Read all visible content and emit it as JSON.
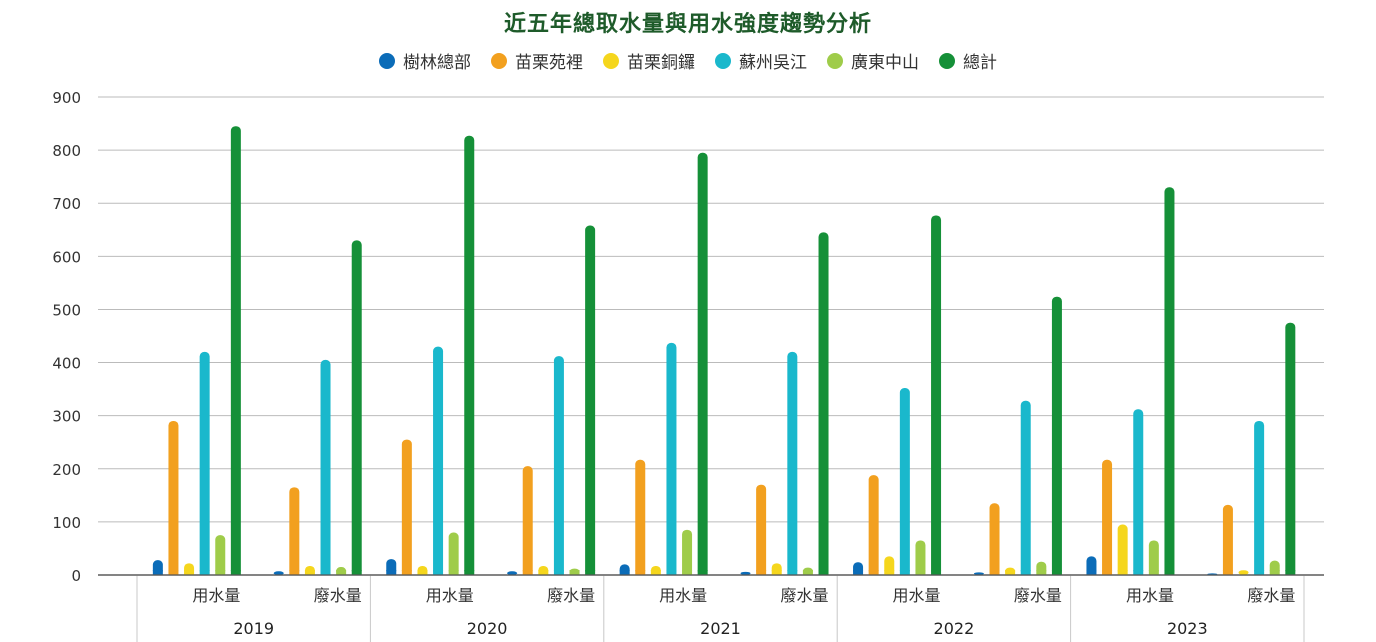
{
  "chart_data": {
    "type": "bar",
    "title": "近五年總取水量與用水強度趨勢分析",
    "ylim": [
      0,
      900
    ],
    "yticks": [
      0,
      100,
      200,
      300,
      400,
      500,
      600,
      700,
      800,
      900
    ],
    "grid": true,
    "legend_position": "top-center",
    "years": [
      "2019",
      "2020",
      "2021",
      "2022",
      "2023"
    ],
    "subcategories": [
      "用水量",
      "廢水量"
    ],
    "series": [
      {
        "name": "樹林總部",
        "color": "#0b6cb8",
        "values": [
          [
            28,
            7
          ],
          [
            30,
            7
          ],
          [
            20,
            6
          ],
          [
            24,
            5
          ],
          [
            35,
            3
          ]
        ]
      },
      {
        "name": "苗栗苑裡",
        "color": "#f2a01f",
        "values": [
          [
            290,
            165
          ],
          [
            255,
            205
          ],
          [
            217,
            170
          ],
          [
            188,
            135
          ],
          [
            217,
            132
          ]
        ]
      },
      {
        "name": "苗栗銅鑼",
        "color": "#f5d61d",
        "values": [
          [
            22,
            17
          ],
          [
            17,
            17
          ],
          [
            17,
            22
          ],
          [
            35,
            14
          ],
          [
            95,
            9
          ]
        ]
      },
      {
        "name": "蘇州吳江",
        "color": "#1ab8cc",
        "values": [
          [
            420,
            405
          ],
          [
            430,
            412
          ],
          [
            437,
            420
          ],
          [
            352,
            328
          ],
          [
            312,
            290
          ]
        ]
      },
      {
        "name": "廣東中山",
        "color": "#9fcc4a",
        "values": [
          [
            75,
            15
          ],
          [
            80,
            12
          ],
          [
            85,
            14
          ],
          [
            65,
            25
          ],
          [
            65,
            27
          ]
        ]
      },
      {
        "name": "總計",
        "color": "#159038",
        "values": [
          [
            845,
            630
          ],
          [
            827,
            658
          ],
          [
            795,
            645
          ],
          [
            677,
            524
          ],
          [
            730,
            475
          ]
        ]
      }
    ]
  }
}
